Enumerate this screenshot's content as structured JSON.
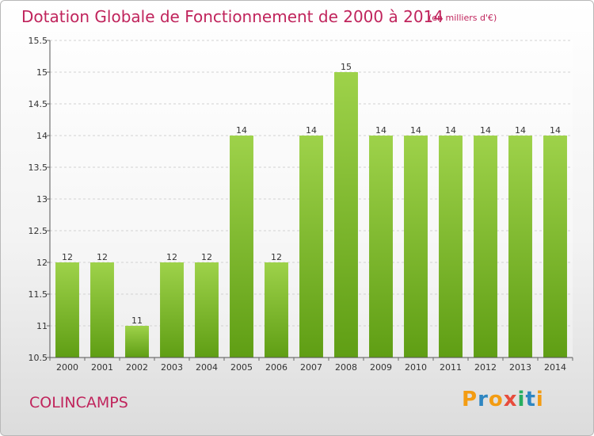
{
  "title": "Dotation Globale de Fonctionnement de 2000 à 2014",
  "subtitle": "(en milliers d'€)",
  "commune": "COLINCAMPS",
  "logo": {
    "letters": [
      "P",
      "r",
      "o",
      "x",
      "i",
      "t",
      "i"
    ],
    "colors": [
      "#f39c12",
      "#2e86c1",
      "#f39c12",
      "#e74c3c",
      "#27ae60",
      "#2e86c1",
      "#f39c12"
    ]
  },
  "colors": {
    "bar_top": "#9ed24a",
    "bar_bottom": "#5f9e14",
    "accent": "#c0245c"
  },
  "chart_data": {
    "type": "bar",
    "categories": [
      "2000",
      "2001",
      "2002",
      "2003",
      "2004",
      "2005",
      "2006",
      "2007",
      "2008",
      "2009",
      "2010",
      "2011",
      "2012",
      "2013",
      "2014"
    ],
    "values": [
      12,
      12,
      11,
      12,
      12,
      14,
      12,
      14,
      15,
      14,
      14,
      14,
      14,
      14,
      14
    ],
    "value_labels": [
      "12",
      "12",
      "11",
      "12",
      "12",
      "14",
      "12",
      "14",
      "15",
      "14",
      "14",
      "14",
      "14",
      "14",
      "14"
    ],
    "ylim": [
      10.5,
      15.5
    ],
    "yticks": [
      10.5,
      11,
      11.5,
      12,
      12.5,
      13,
      13.5,
      14,
      14.5,
      15,
      15.5
    ],
    "ytick_labels": [
      "10.5",
      "11",
      "11.5",
      "12",
      "12.5",
      "13",
      "13.5",
      "14",
      "14.5",
      "15",
      "15.5"
    ],
    "grid": true
  }
}
